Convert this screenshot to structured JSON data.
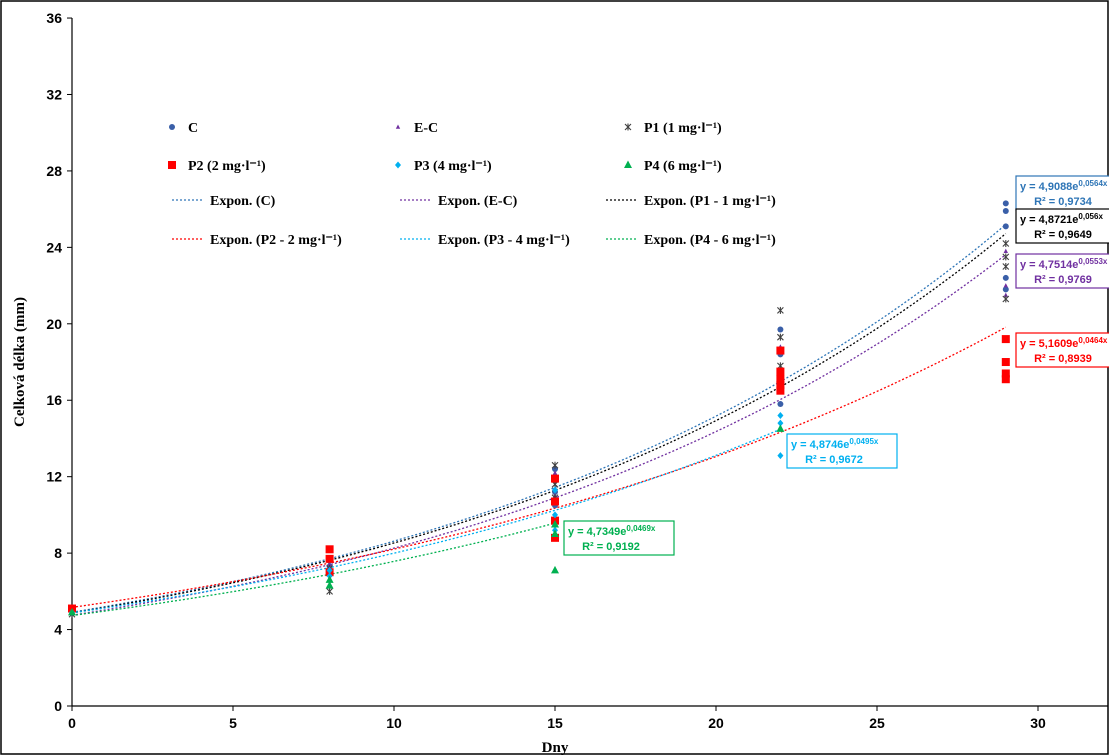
{
  "chart_data": {
    "type": "scatter",
    "xlabel": "Dny",
    "ylabel": "Celková délka (mm)",
    "xlim": [
      0,
      32
    ],
    "ylim": [
      0,
      36
    ],
    "x_ticks": [
      "0",
      "5",
      "10",
      "15",
      "20",
      "25",
      "30"
    ],
    "y_ticks": [
      "0",
      "4",
      "8",
      "12",
      "16",
      "20",
      "24",
      "28",
      "32",
      "36"
    ],
    "grid": false,
    "legend_placement": "top-left inside",
    "series": [
      {
        "name": "C",
        "marker": "circle",
        "color": "#3a5fa8",
        "x": [
          0,
          8,
          8,
          8,
          15,
          15,
          15,
          15,
          15,
          22,
          22,
          22,
          22,
          29,
          29,
          29,
          29,
          29
        ],
        "y": [
          5.0,
          7.3,
          6.9,
          7.6,
          11.2,
          12.4,
          11.8,
          10.5,
          12.0,
          19.7,
          18.4,
          17.2,
          15.8,
          26.3,
          25.9,
          25.1,
          22.4,
          21.8
        ]
      },
      {
        "name": "E-C",
        "marker": "triangle-small",
        "color": "#7030a0",
        "x": [
          0,
          8,
          8,
          15,
          15,
          15,
          22,
          22,
          29,
          29,
          29
        ],
        "y": [
          4.9,
          7.0,
          7.4,
          11.0,
          12.2,
          10.8,
          18.8,
          17.0,
          23.8,
          22.0,
          21.5
        ]
      },
      {
        "name": "P1 (1 mg·l⁻¹)",
        "marker": "star",
        "color": "#404040",
        "x": [
          0,
          8,
          8,
          15,
          15,
          15,
          22,
          22,
          22,
          29,
          29,
          29,
          29
        ],
        "y": [
          4.8,
          6.0,
          7.2,
          12.6,
          11.6,
          10.9,
          20.7,
          19.3,
          17.8,
          24.2,
          23.5,
          23.0,
          21.3
        ]
      },
      {
        "name": "P2 (2 mg·l⁻¹)",
        "marker": "square",
        "color": "#ff0000",
        "x": [
          0,
          8,
          8,
          8,
          15,
          15,
          15,
          15,
          22,
          22,
          22,
          22,
          22,
          29,
          29,
          29,
          29
        ],
        "y": [
          5.1,
          8.2,
          7.7,
          7.0,
          10.7,
          9.7,
          8.8,
          11.9,
          18.6,
          17.5,
          17.1,
          16.8,
          16.5,
          19.2,
          18.0,
          17.4,
          17.1
        ]
      },
      {
        "name": "P3 (4 mg·l⁻¹)",
        "marker": "diamond",
        "color": "#00b0f0",
        "x": [
          0,
          8,
          8,
          15,
          15,
          15,
          22,
          22,
          22
        ],
        "y": [
          4.9,
          6.8,
          7.1,
          11.3,
          10.0,
          9.2,
          15.2,
          14.8,
          13.1
        ]
      },
      {
        "name": "P4 (6 mg·l⁻¹)",
        "marker": "triangle",
        "color": "#00b050",
        "x": [
          0,
          8,
          8,
          15,
          15,
          15,
          22
        ],
        "y": [
          4.9,
          6.3,
          6.6,
          9.5,
          9.0,
          7.1,
          14.5
        ]
      }
    ],
    "trendlines": [
      {
        "name": "Expon. (C)",
        "color": "#2e75b6",
        "a": 4.9088,
        "b": 0.0564,
        "x_end": 29,
        "equation": "y = 4,9088e",
        "exponent": "0,0564x",
        "r2": "R² = 0,9734"
      },
      {
        "name": "Expon. (E-C)",
        "color": "#7030a0",
        "a": 4.7514,
        "b": 0.0553,
        "x_end": 29,
        "equation": "y = 4,7514e",
        "exponent": "0,0553x",
        "r2": "R² = 0,9769"
      },
      {
        "name": "Expon. (P1 - 1 mg·l⁻¹)",
        "color": "#000000",
        "a": 4.8721,
        "b": 0.056,
        "x_end": 29,
        "equation": "y = 4,8721e",
        "exponent": "0,056x",
        "r2": "R² = 0,9649"
      },
      {
        "name": "Expon. (P2 - 2 mg·l⁻¹)",
        "color": "#ff0000",
        "a": 5.1609,
        "b": 0.0464,
        "x_end": 29,
        "equation": "y = 5,1609e",
        "exponent": "0,0464x",
        "r2": "R² = 0,8939"
      },
      {
        "name": "Expon. (P3 - 4 mg·l⁻¹)",
        "color": "#00b0f0",
        "a": 4.8746,
        "b": 0.0495,
        "x_end": 22,
        "equation": "y = 4,8746e",
        "exponent": "0,0495x",
        "r2": "R² = 0,9672"
      },
      {
        "name": "Expon. (P4 - 6 mg·l⁻¹)",
        "color": "#00b050",
        "a": 4.7349,
        "b": 0.0469,
        "x_end": 15,
        "equation": "y = 4,7349e",
        "exponent": "0,0469x",
        "r2": "R² = 0,9192"
      }
    ]
  }
}
